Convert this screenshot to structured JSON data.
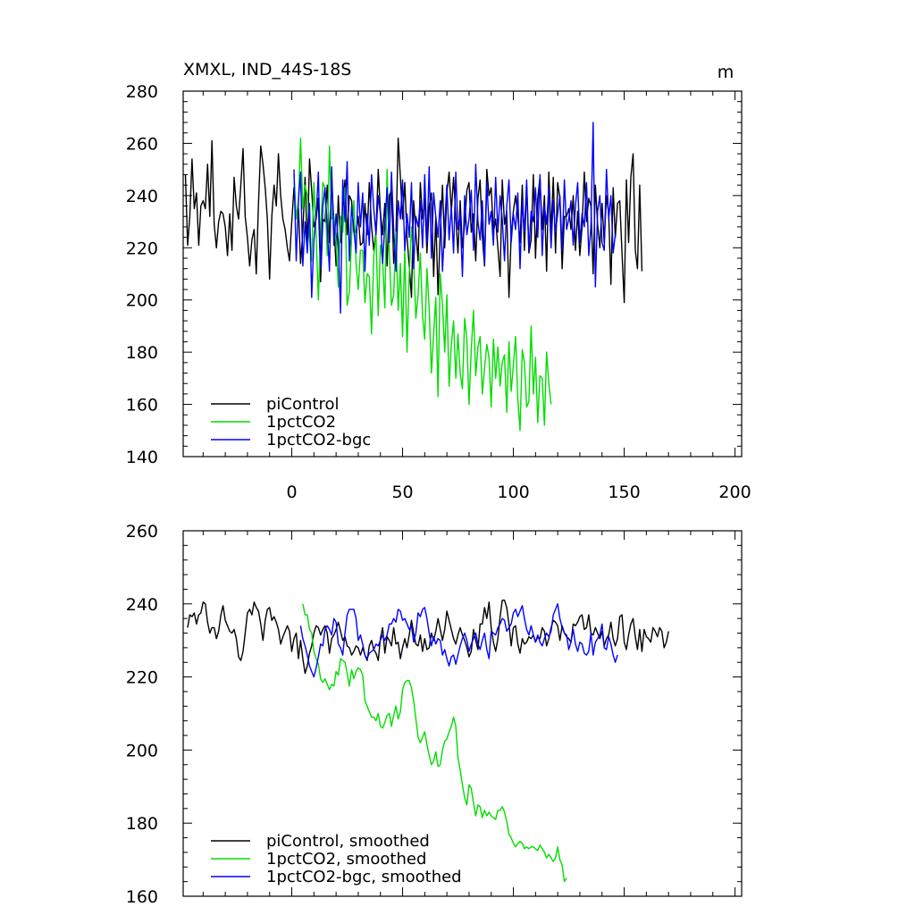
{
  "chart_data": [
    {
      "type": "line",
      "title": "XMXL, IND_44S-18S",
      "units_label": "m",
      "xlim": [
        -49,
        203
      ],
      "ylim": [
        140,
        280
      ],
      "yticks": [
        140,
        160,
        180,
        200,
        220,
        240,
        260,
        280
      ],
      "xticks": [
        0,
        50,
        100,
        150,
        200
      ],
      "legend_position": "bottom-left",
      "grid": false,
      "series": [
        {
          "name": "piControl",
          "color": "#000000",
          "x_start": -48,
          "values": [
            248,
            221,
            232,
            254,
            235,
            241,
            221,
            236,
            238,
            235,
            252,
            232,
            261,
            229,
            220,
            230,
            234,
            233,
            228,
            217,
            233,
            219,
            247,
            236,
            231,
            244,
            258,
            232,
            224,
            213,
            223,
            227,
            210,
            237,
            259,
            252,
            243,
            231,
            208,
            232,
            244,
            236,
            256,
            240,
            231,
            227,
            220,
            215,
            230,
            243,
            232,
            235,
            214,
            226,
            247,
            220,
            254,
            242,
            228,
            231,
            239,
            207,
            231,
            230,
            244,
            222,
            246,
            229,
            213,
            240,
            222,
            236,
            246,
            225,
            240,
            238,
            226,
            226,
            232,
            221,
            222,
            237,
            225,
            245,
            228,
            219,
            226,
            250,
            234,
            225,
            237,
            213,
            240,
            242,
            214,
            224,
            262,
            247,
            231,
            245,
            224,
            213,
            201,
            238,
            226,
            215,
            245,
            231,
            239,
            218,
            236,
            241,
            209,
            232,
            202,
            226,
            244,
            220,
            241,
            249,
            234,
            247,
            232,
            218,
            238,
            220,
            229,
            242,
            245,
            226,
            233,
            215,
            239,
            246,
            224,
            213,
            250,
            240,
            243,
            226,
            231,
            220,
            209,
            246,
            229,
            234,
            201,
            225,
            234,
            240,
            232,
            222,
            244,
            219,
            244,
            218,
            223,
            248,
            216,
            239,
            247,
            227,
            240,
            211,
            249,
            226,
            247,
            218,
            245,
            239,
            212,
            232,
            232,
            235,
            227,
            240,
            219,
            234,
            217,
            228,
            249,
            230,
            239,
            236,
            210,
            244,
            229,
            220,
            237,
            222,
            240,
            233,
            206,
            243,
            224,
            237,
            238,
            218,
            199,
            246,
            222,
            247,
            256,
            219,
            212,
            244,
            211
          ]
        },
        {
          "name": "1pctCO2",
          "color": "#00dd00",
          "x_start": 1,
          "values": [
            248,
            231,
            238,
            262,
            235,
            244,
            240,
            223,
            215,
            245,
            225,
            200,
            226,
            245,
            243,
            217,
            259,
            231,
            232,
            223,
            205,
            232,
            226,
            243,
            198,
            203,
            224,
            238,
            214,
            204,
            219,
            219,
            199,
            210,
            209,
            187,
            217,
            225,
            194,
            221,
            215,
            197,
            250,
            218,
            198,
            202,
            226,
            196,
            214,
            186,
            220,
            180,
            210,
            228,
            215,
            193,
            202,
            218,
            194,
            185,
            212,
            197,
            172,
            187,
            201,
            163,
            210,
            198,
            180,
            202,
            167,
            183,
            192,
            170,
            187,
            172,
            166,
            193,
            185,
            160,
            181,
            196,
            171,
            182,
            186,
            164,
            174,
            183,
            178,
            159,
            185,
            170,
            182,
            167,
            176,
            179,
            157,
            184,
            165,
            175,
            186,
            162,
            150,
            181,
            176,
            159,
            161,
            190,
            164,
            178,
            153,
            171,
            170,
            152,
            180,
            168,
            160
          ]
        },
        {
          "name": "1pctCO2-bgc",
          "color": "#0000ff",
          "x_start": 1,
          "values": [
            250,
            215,
            238,
            249,
            213,
            230,
            218,
            237,
            201,
            223,
            232,
            249,
            212,
            236,
            243,
            228,
            211,
            251,
            221,
            233,
            222,
            195,
            246,
            230,
            253,
            215,
            236,
            227,
            218,
            245,
            228,
            241,
            211,
            233,
            221,
            248,
            235,
            225,
            240,
            233,
            214,
            229,
            243,
            222,
            249,
            227,
            211,
            238,
            231,
            246,
            219,
            233,
            224,
            245,
            212,
            232,
            228,
            238,
            220,
            248,
            222,
            251,
            216,
            241,
            232,
            224,
            238,
            211,
            229,
            244,
            223,
            236,
            218,
            249,
            227,
            233,
            209,
            240,
            225,
            231,
            242,
            219,
            252,
            230,
            223,
            238,
            214,
            245,
            229,
            234,
            221,
            247,
            226,
            240,
            231,
            215,
            236,
            246,
            222,
            233,
            227,
            241,
            212,
            238,
            226,
            246,
            219,
            234,
            230,
            243,
            224,
            248,
            217,
            236,
            229,
            243,
            220,
            238,
            226,
            233,
            240,
            219,
            246,
            227,
            231,
            238,
            221,
            236,
            245,
            222,
            233,
            228,
            245,
            217,
            228,
            268,
            205,
            234,
            240,
            222,
            219,
            250,
            231,
            240,
            218,
            225
          ]
        }
      ]
    },
    {
      "type": "line",
      "title": "",
      "xlim": [
        -49,
        203
      ],
      "ylim": [
        160,
        260
      ],
      "yticks": [
        160,
        180,
        200,
        220,
        240,
        260
      ],
      "legend_position": "bottom-left",
      "grid": false,
      "series": [
        {
          "name": "piControl, smoothed",
          "color": "#000000",
          "x_start": -47,
          "values": [
            233.5,
            237,
            236.5,
            237.5,
            234.5,
            237,
            237.5,
            240.5,
            240,
            235,
            232,
            233.5,
            233.5,
            230.5,
            232.5,
            237,
            239.5,
            235.5,
            234,
            232.5,
            232,
            233,
            230.5,
            225.5,
            224.5,
            227,
            232,
            237.5,
            238.5,
            237,
            240.5,
            239,
            238,
            234.5,
            230,
            235.5,
            238.5,
            239,
            235.5,
            236.5,
            235,
            233,
            229,
            231,
            232.5,
            234,
            232.5,
            227,
            230.5,
            232,
            225,
            230,
            225,
            221,
            223,
            226.5,
            228.5,
            232,
            234,
            233.5,
            231.5,
            233,
            234,
            232,
            226.5,
            230.5,
            231.5,
            233,
            235,
            232.5,
            230,
            231,
            228.5,
            228,
            226,
            227,
            228.5,
            228,
            226,
            228,
            226,
            224.5,
            228.5,
            230,
            227.5,
            226.5,
            224.5,
            230.5,
            233.5,
            226.5,
            231,
            230,
            228.5,
            233.5,
            229,
            229.5,
            225,
            228,
            230.5,
            228,
            231.5,
            235.5,
            232,
            229,
            228.5,
            231.5,
            227,
            230.5,
            227.5,
            228,
            232,
            230,
            232.5,
            236,
            233,
            230,
            233,
            238,
            235.5,
            233,
            230.5,
            229,
            231.5,
            233.5,
            231.5,
            230,
            228,
            225.5,
            227,
            233,
            230,
            227.5,
            234.5,
            234.5,
            239,
            236,
            240.5,
            233.5,
            229.5,
            227,
            230.5,
            236.5,
            241,
            241,
            239,
            234.5,
            228.5,
            233.5,
            234,
            229,
            226.5,
            230.5,
            229,
            229.5,
            231,
            230.5,
            231.5,
            229.5,
            231,
            230.5,
            233.5,
            232.5,
            228.5,
            230.5,
            233.5,
            235.5,
            235,
            234,
            230,
            234,
            232,
            231,
            230.5,
            229.5,
            234.5,
            234,
            235,
            236.5,
            237,
            233,
            233.5,
            237,
            232,
            231.5,
            233.5,
            232,
            230.5,
            232.5,
            228.5,
            230.5,
            231.5,
            235,
            230.5,
            228.5,
            230.5,
            236.5,
            237,
            229.5,
            227.5,
            231.5,
            234.5,
            236,
            231,
            227.5,
            233,
            227,
            233,
            231,
            230.5,
            229.5,
            233.5,
            232.5,
            231,
            233.5,
            232.5,
            228,
            229.5,
            232.5
          ]
        },
        {
          "name": "1pctCO2, smoothed",
          "color": "#00dd00",
          "x_start": 5,
          "values": [
            240,
            237,
            237,
            233,
            232,
            227,
            225,
            223.5,
            219.5,
            218.5,
            219.5,
            218,
            216.5,
            218,
            217.5,
            221.5,
            220.5,
            225,
            224.5,
            224,
            221,
            217.5,
            222,
            219.5,
            221.5,
            222.5,
            222,
            220.5,
            213.5,
            212,
            210.5,
            209,
            209,
            208,
            210,
            206.5,
            206,
            207.5,
            209.5,
            210,
            206.5,
            209.5,
            212,
            208.5,
            210.5,
            216.5,
            218.5,
            219,
            219,
            217,
            213.5,
            208.5,
            203.5,
            202,
            203.5,
            205,
            201.5,
            198.5,
            196,
            197,
            199.5,
            195.5,
            196,
            200,
            202.5,
            203,
            205,
            206.5,
            209,
            206.5,
            198,
            194.5,
            190.5,
            187,
            185,
            190.5,
            189.5,
            185.5,
            182,
            185,
            184.5,
            181.5,
            183.5,
            182,
            183,
            182,
            181.5,
            181,
            183.5,
            183.5,
            184.5,
            183,
            180.5,
            177,
            176,
            174.5,
            173.5,
            174.5,
            175,
            174.5,
            173,
            173.5,
            173,
            173.5,
            173.5,
            173,
            172.5,
            174,
            173,
            172,
            170.5,
            171.5,
            170.5,
            169.5,
            170.5,
            173.5,
            170,
            168.5,
            164,
            165
          ]
        },
        {
          "name": "1pctCO2-bgc, smoothed",
          "color": "#0000ff",
          "x_start": 4,
          "values": [
            234,
            230.5,
            228.5,
            226,
            223,
            221.5,
            220,
            222.5,
            225.5,
            229,
            228.5,
            233,
            234,
            233,
            231.5,
            236,
            235,
            229,
            228,
            226,
            232,
            237,
            238.5,
            238.5,
            238.5,
            236,
            230,
            231.5,
            229,
            226,
            225,
            226.5,
            227,
            227.5,
            229,
            228.5,
            230,
            231.5,
            230,
            231.5,
            234.5,
            234.5,
            236,
            235,
            238.5,
            238,
            235.5,
            236,
            234.5,
            233,
            234,
            229.5,
            232,
            237.5,
            236.5,
            238.5,
            239,
            236,
            232,
            228.5,
            231,
            229,
            230.5,
            230,
            226,
            227.5,
            225,
            223,
            225.5,
            226,
            223.5,
            226,
            228.5,
            230.5,
            232,
            230,
            227,
            229,
            230.5,
            232,
            229,
            227.5,
            230,
            232,
            227.5,
            225,
            232.5,
            232,
            231.5,
            233.5,
            234.5,
            236,
            235.5,
            232.5,
            233.5,
            234.5,
            237.5,
            238.5,
            236.5,
            238,
            239.5,
            236,
            233,
            231.5,
            234,
            231.5,
            229.5,
            231.5,
            229.5,
            228.5,
            230.5,
            232,
            231,
            232.5,
            237,
            238.5,
            240,
            236,
            233.5,
            232,
            231.5,
            227.5,
            229.5,
            233,
            229,
            227,
            229.5,
            229,
            226.5,
            226,
            227,
            232,
            226,
            229.5,
            230.5,
            231.5,
            234.5,
            228,
            227.5,
            231,
            229,
            226,
            224,
            226
          ]
        }
      ]
    }
  ]
}
